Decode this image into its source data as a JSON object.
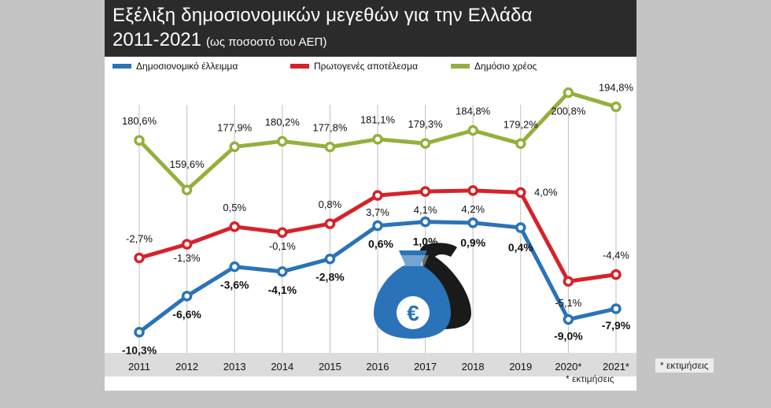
{
  "header": {
    "title_line1": "Εξέλιξη δημοσιονομικών μεγεθών για την Ελλάδα",
    "title_line2": "2011-2021",
    "subtitle": "(ως ποσοστό του ΑΕΠ)"
  },
  "footnote": "* εκτιμήσεις",
  "colors": {
    "deficit": "#2a73b8",
    "primary": "#d6222b",
    "debt": "#94b03c",
    "header_bg": "#2b2b2b",
    "outer_bg": "#c4c4c4",
    "axis_strip": "#dcdcdc",
    "bag_blue": "#2a73b8",
    "bag_black": "#1a1a1a"
  },
  "icons": [
    "money-bag-euro-icon",
    "money-bag-shadow-icon"
  ],
  "chart_data": {
    "type": "line",
    "title": "Εξέλιξη δημοσιονομικών μεγεθών για την Ελλάδα 2011-2021",
    "subtitle": "(ως ποσοστό του ΑΕΠ)",
    "categories": [
      "2011",
      "2012",
      "2013",
      "2014",
      "2015",
      "2016",
      "2017",
      "2018",
      "2019",
      "2020*",
      "2021*"
    ],
    "legend_position": "top",
    "grid": "vertical",
    "series": [
      {
        "name": "Δημοσιονομικό έλλειμμα",
        "color": "#2a73b8",
        "values": [
          -10.3,
          -6.6,
          -3.6,
          -4.1,
          -2.8,
          0.6,
          1.0,
          0.9,
          0.4,
          -9.0,
          -7.9
        ],
        "labels": [
          "-10,3%",
          "-6,6%",
          "-3,6%",
          "-4,1%",
          "-2,8%",
          "0,6%",
          "1,0%",
          "0,9%",
          "0,4%",
          "-9,0%",
          "-7,9%"
        ]
      },
      {
        "name": "Πρωτογενές αποτέλεσμα",
        "color": "#d6222b",
        "values": [
          -2.7,
          -1.3,
          0.5,
          -0.1,
          0.8,
          3.7,
          4.1,
          4.2,
          4.0,
          -5.1,
          -4.4
        ],
        "labels": [
          "-2,7%",
          "-1,3%",
          "0,5%",
          "-0,1%",
          "0,8%",
          "3,7%",
          "4,1%",
          "4,2%",
          "4,0%",
          "-5,1%",
          "-4,4%"
        ]
      },
      {
        "name": "Δημόσιο χρέος",
        "color": "#94b03c",
        "values": [
          180.6,
          159.6,
          177.9,
          180.2,
          177.8,
          181.1,
          179.3,
          184.8,
          179.2,
          200.8,
          194.8
        ],
        "labels": [
          "180,6%",
          "159,6%",
          "177,9%",
          "180,2%",
          "177,8%",
          "181,1%",
          "179,3%",
          "184,8%",
          "179,2%",
          "200,8%",
          "194,8%"
        ]
      }
    ]
  }
}
